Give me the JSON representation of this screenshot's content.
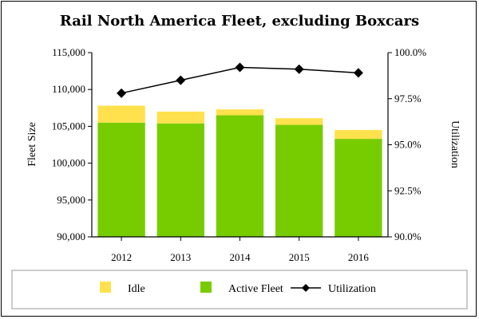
{
  "chart_data": {
    "type": "bar",
    "title": "Rail North America Fleet, excluding Boxcars",
    "categories": [
      "2012",
      "2013",
      "2014",
      "2015",
      "2016"
    ],
    "series": [
      {
        "name": "Active Fleet",
        "type": "bar",
        "stacked": true,
        "color": "#77CC00",
        "values": [
          105500,
          105400,
          106500,
          105200,
          103300
        ]
      },
      {
        "name": "Idle",
        "type": "bar",
        "stacked": true,
        "color": "#FFE14D",
        "values": [
          2300,
          1600,
          800,
          900,
          1200
        ]
      },
      {
        "name": "Utilization",
        "type": "line",
        "axis": "right",
        "color": "#000000",
        "marker": "diamond",
        "values": [
          97.8,
          98.5,
          99.2,
          99.1,
          98.9
        ]
      }
    ],
    "ylabel": "Fleet Size",
    "y2label": "Utilization",
    "ylim": [
      90000,
      115000
    ],
    "y2lim": [
      90.0,
      100.0
    ],
    "yticks": [
      "90,000",
      "95,000",
      "100,000",
      "105,000",
      "110,000",
      "115,000"
    ],
    "y2ticks": [
      "90.0%",
      "92.5%",
      "95.0%",
      "97.5%",
      "100.0%"
    ],
    "grid": false,
    "legend": {
      "placement": "bottom",
      "entries": [
        "Idle",
        "Active Fleet",
        "Utilization"
      ]
    }
  }
}
